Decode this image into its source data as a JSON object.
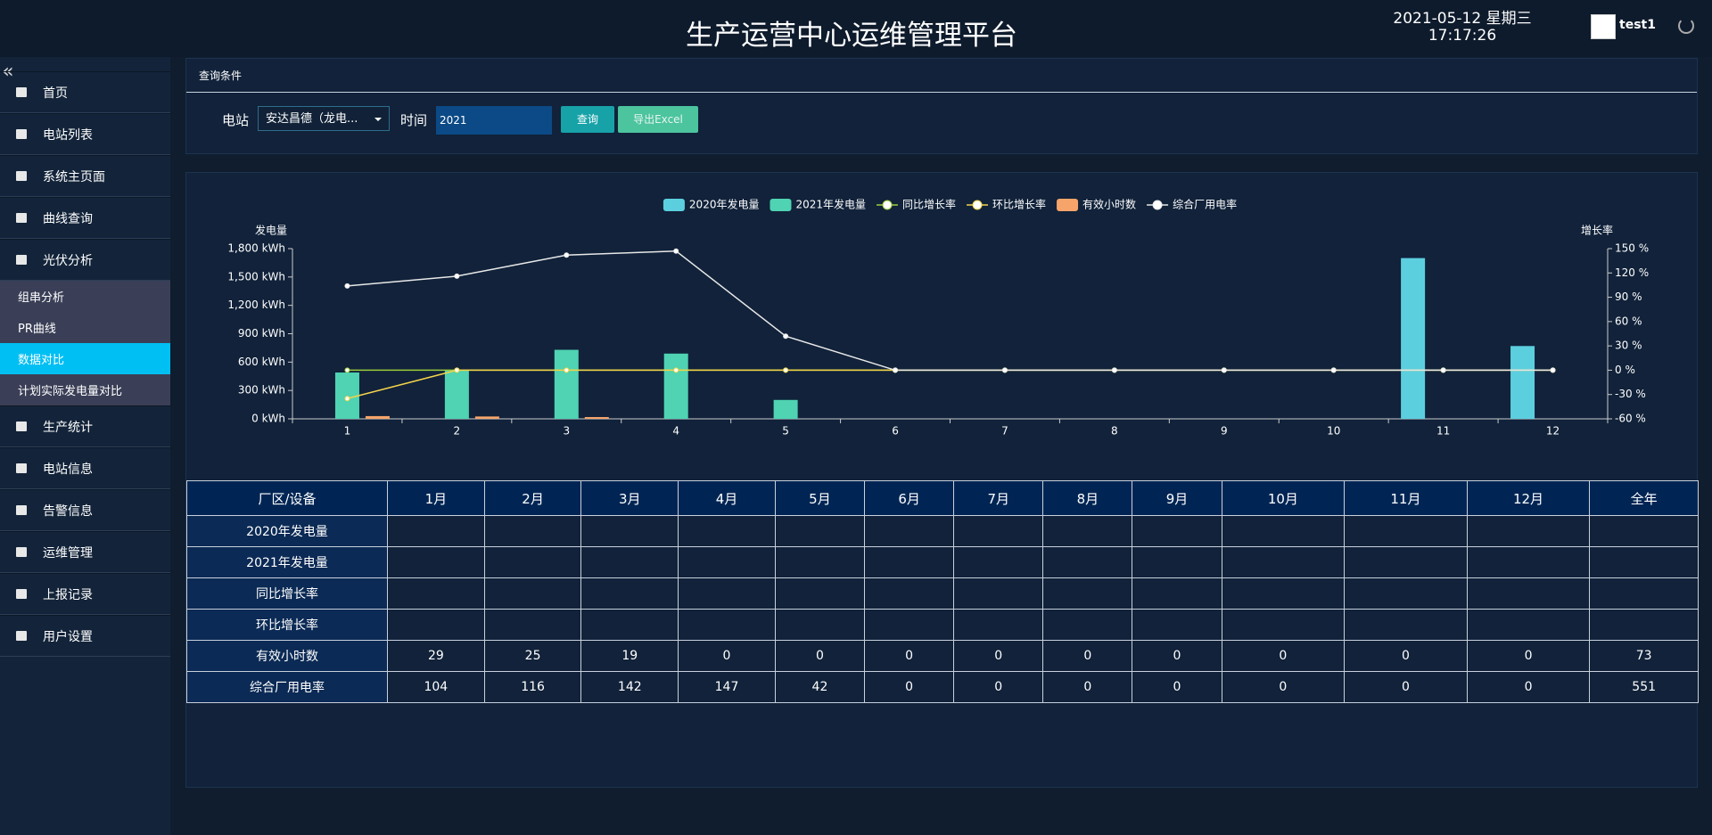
{
  "header": {
    "title": "生产运营中心运维管理平台",
    "date": "2021-05-12 星期三",
    "time": "17:17:26",
    "user": "test1"
  },
  "sidebar": {
    "top": [
      "首页",
      "电站列表",
      "系统主页面",
      "曲线查询",
      "光伏分析"
    ],
    "sub": [
      "组串分析",
      "PR曲线",
      "数据对比",
      "计划实际发电量对比"
    ],
    "bottom": [
      "生产统计",
      "电站信息",
      "告警信息",
      "运维管理",
      "上报记录",
      "用户设置"
    ]
  },
  "query": {
    "title": "查询条件",
    "station_label": "电站",
    "station": "安达昌德（龙电...",
    "time_label": "时间",
    "year": "2021",
    "search": "查询",
    "export": "导出Excel"
  },
  "chart_data": {
    "type": "bar",
    "y_label": "发电量",
    "y2_label": "增长率",
    "categories": [
      "1",
      "2",
      "3",
      "4",
      "5",
      "6",
      "7",
      "8",
      "9",
      "10",
      "11",
      "12"
    ],
    "series": [
      {
        "name": "2020年发电量",
        "type": "bar",
        "color": "#5ccfdf",
        "values": [
          0,
          0,
          0,
          0,
          0,
          0,
          0,
          0,
          0,
          0,
          1700,
          770
        ]
      },
      {
        "name": "2021年发电量",
        "type": "bar",
        "color": "#4fd3b2",
        "values": [
          490,
          510,
          730,
          690,
          200,
          0,
          0,
          0,
          0,
          0,
          0,
          0
        ]
      },
      {
        "name": "同比增长率",
        "type": "line",
        "axis": "y2",
        "color": "#9ccc3c",
        "values": [
          0,
          0,
          0,
          0,
          0,
          0,
          0,
          0,
          0,
          0,
          0,
          0
        ]
      },
      {
        "name": "环比增长率",
        "type": "line",
        "axis": "y2",
        "color": "#f3d34a",
        "values": [
          -35,
          0,
          0,
          0,
          0,
          0,
          0,
          0,
          0,
          0,
          0,
          0
        ]
      },
      {
        "name": "有效小时数",
        "type": "bar",
        "color": "#f6a46a",
        "values": [
          29,
          25,
          19,
          0,
          0,
          0,
          0,
          0,
          0,
          0,
          0,
          0
        ]
      },
      {
        "name": "综合厂用电率",
        "type": "line",
        "axis": "y2",
        "color": "#e8e8e8",
        "values": [
          104,
          116,
          142,
          147,
          42,
          0,
          0,
          0,
          0,
          0,
          0,
          0
        ]
      }
    ],
    "ylim": [
      0,
      1800
    ],
    "yticks": [
      {
        "value": 0,
        "label": "0 kWh"
      },
      {
        "value": 300,
        "label": "300 kWh"
      },
      {
        "value": 600,
        "label": "600 kWh"
      },
      {
        "value": 900,
        "label": "900 kWh"
      },
      {
        "value": 1200,
        "label": "1,200 kWh"
      },
      {
        "value": 1500,
        "label": "1,500 kWh"
      },
      {
        "value": 1800,
        "label": "1,800 kWh"
      }
    ],
    "y2lim": [
      -60,
      150
    ],
    "y2ticks": [
      {
        "value": -60,
        "label": "-60 %"
      },
      {
        "value": -30,
        "label": "-30 %"
      },
      {
        "value": 0,
        "label": "0 %"
      },
      {
        "value": 30,
        "label": "30 %"
      },
      {
        "value": 60,
        "label": "60 %"
      },
      {
        "value": 90,
        "label": "90 %"
      },
      {
        "value": 120,
        "label": "120 %"
      },
      {
        "value": 150,
        "label": "150 %"
      }
    ]
  },
  "table": {
    "columns": [
      "厂区/设备",
      "1月",
      "2月",
      "3月",
      "4月",
      "5月",
      "6月",
      "7月",
      "8月",
      "9月",
      "10月",
      "11月",
      "12月",
      "全年"
    ],
    "rows": [
      {
        "label": "2020年发电量",
        "cells": [
          null,
          null,
          null,
          null,
          null,
          null,
          null,
          null,
          null,
          null,
          null,
          null,
          null
        ]
      },
      {
        "label": "2021年发电量",
        "cells": [
          null,
          null,
          null,
          null,
          null,
          null,
          null,
          null,
          null,
          null,
          null,
          null,
          null
        ]
      },
      {
        "label": "同比增长率",
        "cells": [
          null,
          null,
          null,
          null,
          null,
          null,
          null,
          null,
          null,
          null,
          null,
          null,
          null
        ]
      },
      {
        "label": "环比增长率",
        "cells": [
          null,
          null,
          null,
          null,
          null,
          null,
          null,
          null,
          null,
          null,
          null,
          null,
          null
        ]
      },
      {
        "label": "有效小时数",
        "cells": [
          29,
          25,
          19,
          0,
          0,
          0,
          0,
          0,
          0,
          0,
          0,
          0,
          73
        ]
      },
      {
        "label": "综合厂用电率",
        "cells": [
          104,
          116,
          142,
          147,
          42,
          0,
          0,
          0,
          0,
          0,
          0,
          0,
          551
        ]
      }
    ]
  }
}
